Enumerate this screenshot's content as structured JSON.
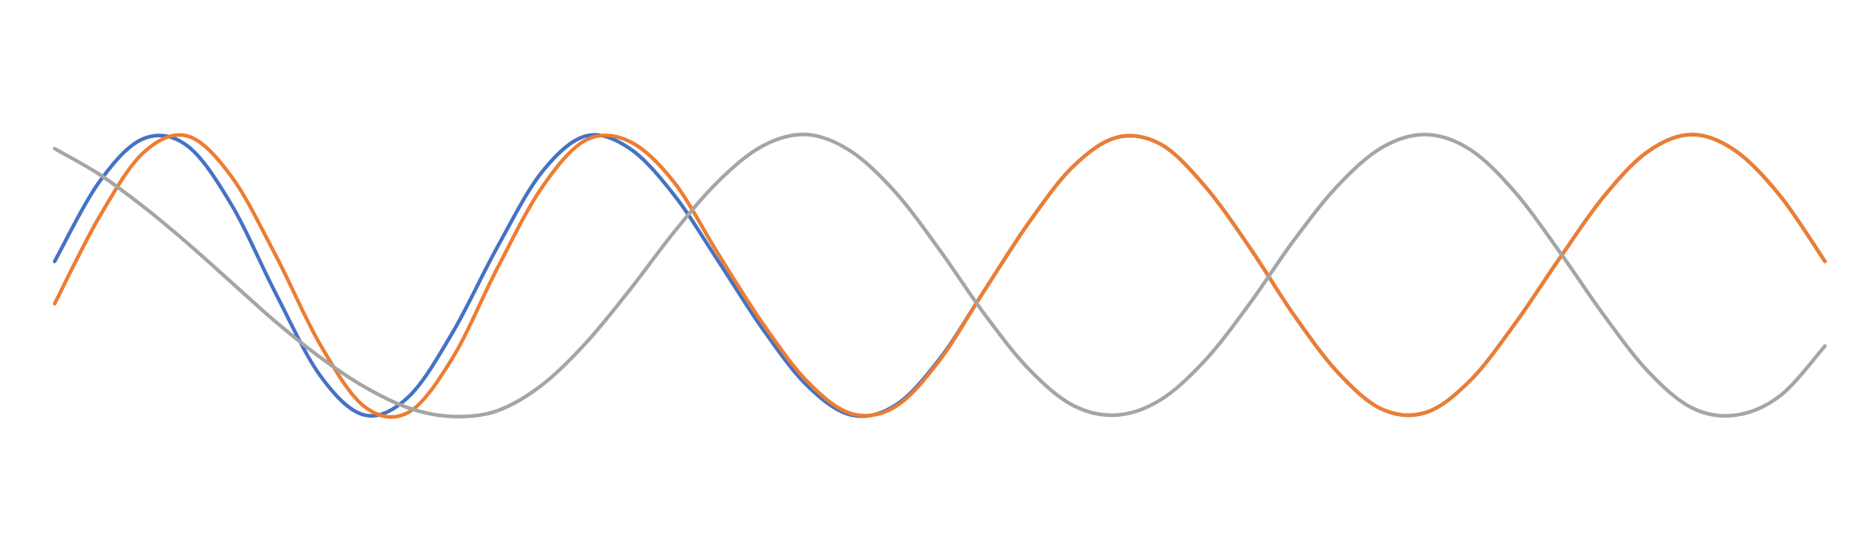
{
  "chart_data": {
    "type": "line",
    "title": "",
    "xlabel": "",
    "ylabel": "",
    "grid": false,
    "axes_visible": false,
    "legend": "none",
    "xlim": [
      0,
      1000
    ],
    "ylim": [
      -1.1,
      1.1
    ],
    "series": [
      {
        "color": "#4472C4",
        "x": [
          0,
          25,
          50,
          75,
          100,
          125,
          150,
          175,
          200,
          225,
          250,
          275,
          300,
          325,
          350,
          375,
          400,
          425,
          450,
          475,
          500,
          525,
          550,
          575,
          600,
          625,
          650,
          675,
          700,
          725,
          750,
          775,
          800,
          825,
          850,
          875,
          900,
          925,
          950,
          975,
          1000
        ],
        "y": [
          0.1,
          0.66,
          0.97,
          0.92,
          0.5,
          -0.13,
          -0.71,
          -0.99,
          -0.86,
          -0.4,
          0.2,
          0.73,
          0.99,
          0.9,
          0.57,
          0.1,
          -0.38,
          -0.78,
          -0.99,
          -0.92,
          -0.59,
          -0.11,
          0.37,
          0.77,
          0.98,
          0.93,
          0.63,
          0.2,
          -0.28,
          -0.69,
          -0.95,
          -0.97,
          -0.74,
          -0.34,
          0.12,
          0.56,
          0.88,
          1.0,
          0.88,
          0.56,
          0.1
        ]
      },
      {
        "color": "#ED7D31",
        "x": [
          0,
          25,
          50,
          75,
          100,
          125,
          150,
          175,
          200,
          225,
          250,
          275,
          300,
          325,
          350,
          375,
          400,
          425,
          450,
          475,
          500,
          525,
          550,
          575,
          600,
          625,
          650,
          675,
          700,
          725,
          750,
          775,
          800,
          825,
          850,
          875,
          900,
          925,
          950,
          975,
          1000
        ],
        "y": [
          -0.2,
          0.41,
          0.87,
          0.99,
          0.7,
          0.14,
          -0.49,
          -0.93,
          -0.97,
          -0.58,
          0.05,
          0.62,
          0.96,
          0.95,
          0.66,
          0.15,
          -0.34,
          -0.75,
          -0.98,
          -0.93,
          -0.6,
          -0.11,
          0.37,
          0.77,
          0.98,
          0.93,
          0.63,
          0.2,
          -0.28,
          -0.69,
          -0.95,
          -0.97,
          -0.74,
          -0.34,
          0.12,
          0.56,
          0.88,
          1.0,
          0.88,
          0.56,
          0.1
        ]
      },
      {
        "color": "#A5A5A5",
        "x": [
          0,
          25,
          50,
          75,
          100,
          125,
          150,
          175,
          200,
          225,
          250,
          275,
          300,
          325,
          350,
          375,
          400,
          425,
          450,
          475,
          500,
          525,
          550,
          575,
          600,
          625,
          650,
          675,
          700,
          725,
          750,
          775,
          800,
          825,
          850,
          875,
          900,
          925,
          950,
          975,
          1000
        ],
        "y": [
          0.9,
          0.72,
          0.49,
          0.23,
          -0.05,
          -0.33,
          -0.58,
          -0.79,
          -0.94,
          -1.0,
          -0.96,
          -0.78,
          -0.48,
          -0.1,
          0.31,
          0.67,
          0.92,
          1.0,
          0.88,
          0.59,
          0.18,
          -0.27,
          -0.66,
          -0.92,
          -0.99,
          -0.88,
          -0.6,
          -0.2,
          0.25,
          0.64,
          0.91,
          1.0,
          0.89,
          0.59,
          0.17,
          -0.28,
          -0.68,
          -0.94,
          -0.99,
          -0.85,
          -0.5
        ]
      }
    ]
  }
}
